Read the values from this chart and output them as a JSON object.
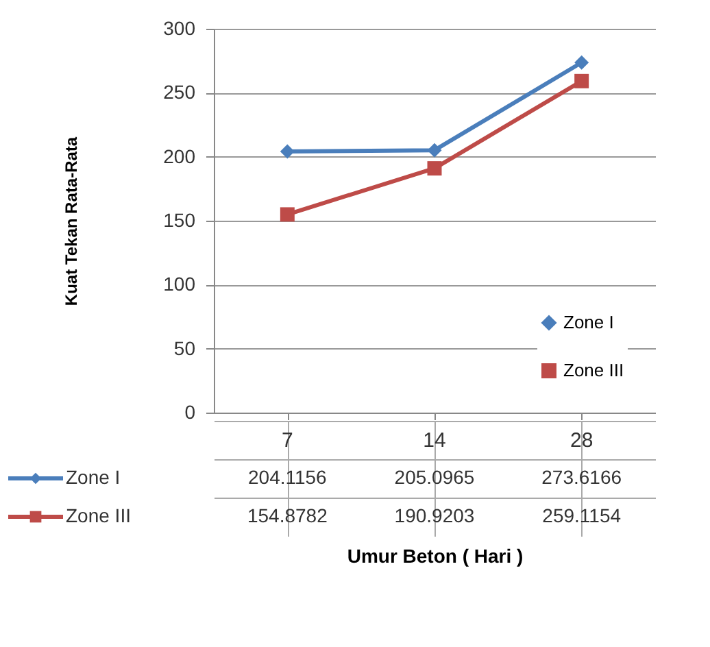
{
  "chart_data": {
    "type": "line",
    "xlabel": "Umur Beton ( Hari )",
    "ylabel": "Kuat Tekan Rata-Rata",
    "categories": [
      "7",
      "14",
      "28"
    ],
    "series": [
      {
        "name": "Zone I",
        "color": "#4a7ebb",
        "marker": "diamond",
        "values": [
          204.1156,
          205.0965,
          273.6166
        ],
        "value_labels": [
          "204.1156",
          "205.0965",
          "273.6166"
        ]
      },
      {
        "name": "Zone III",
        "color": "#be4b48",
        "marker": "square",
        "values": [
          154.8782,
          190.9203,
          259.1154
        ],
        "value_labels": [
          "154.8782",
          "190.9203",
          "259.1154"
        ]
      }
    ],
    "ylim": [
      0,
      300
    ],
    "yticks": [
      0,
      50,
      100,
      150,
      200,
      250,
      300
    ],
    "grid": "y",
    "legend": "bottom right",
    "tick_labels": "y"
  }
}
